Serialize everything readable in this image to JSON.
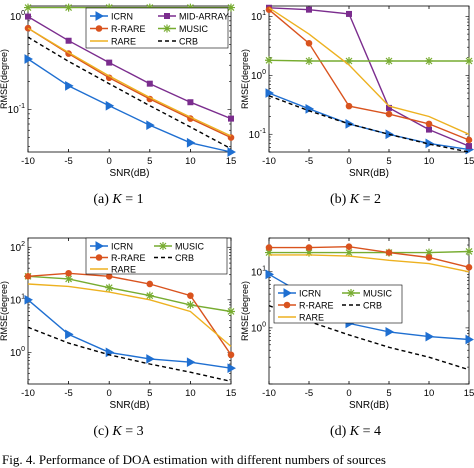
{
  "figure_caption": "Fig. 4. Performance of DOA estimation with different numbers of sources",
  "colors": {
    "ICRN": "#1f6fd1",
    "MID-ARRAY": "#7b2d8e",
    "R-RARE": "#d9531e",
    "MUSIC": "#77ac30",
    "RARE": "#edb120",
    "CRB": "#000000"
  },
  "chart_data": [
    {
      "type": "line",
      "caption_prefix": "(a)",
      "caption_var": "K",
      "caption_val": "= 1",
      "xlabel": "SNR(dB)",
      "ylabel": "RMSE(degree)",
      "x": [
        -10,
        -5,
        0,
        5,
        10,
        15
      ],
      "xticks": [
        "-10",
        "-5",
        "0",
        "5",
        "10",
        "15"
      ],
      "yscale": "log",
      "ylim": [
        0.035,
        1.3
      ],
      "yticks": [
        {
          "v": 0.1,
          "label": "10",
          "exp": "-1"
        },
        {
          "v": 1,
          "label": "10",
          "exp": "0"
        }
      ],
      "legend_position": "top",
      "legend_columns": 2,
      "series": [
        {
          "name": "ICRN",
          "marker": "tri",
          "dash": false,
          "values": [
            0.35,
            0.18,
            0.11,
            0.068,
            0.044,
            0.035
          ]
        },
        {
          "name": "MID-ARRAY",
          "marker": "sq",
          "dash": false,
          "values": [
            1.0,
            0.55,
            0.32,
            0.19,
            0.12,
            0.08
          ]
        },
        {
          "name": "R-RARE",
          "marker": "circ",
          "dash": false,
          "values": [
            0.75,
            0.4,
            0.22,
            0.13,
            0.08,
            0.05
          ]
        },
        {
          "name": "MUSIC",
          "marker": "star",
          "dash": false,
          "values": [
            1.25,
            1.25,
            1.25,
            1.25,
            1.25,
            1.25
          ]
        },
        {
          "name": "RARE",
          "marker": "none",
          "dash": false,
          "values": [
            0.75,
            0.41,
            0.23,
            0.135,
            0.083,
            0.052
          ]
        },
        {
          "name": "CRB",
          "marker": "none",
          "dash": true,
          "values": [
            0.6,
            0.33,
            0.19,
            0.11,
            0.065,
            0.038
          ]
        }
      ]
    },
    {
      "type": "line",
      "caption_prefix": "(b)",
      "caption_var": "K",
      "caption_val": "= 2",
      "xlabel": "SNR(dB)",
      "ylabel": "RMSE(degree)",
      "x": [
        -10,
        -5,
        0,
        5,
        10,
        15
      ],
      "xticks": [
        "-10",
        "-5",
        "0",
        "5",
        "10",
        "15"
      ],
      "yscale": "log",
      "ylim": [
        0.05,
        15
      ],
      "yticks": [
        {
          "v": 0.1,
          "label": "10",
          "exp": "-1"
        },
        {
          "v": 1,
          "label": "10",
          "exp": "0"
        },
        {
          "v": 10,
          "label": "10",
          "exp": "1"
        }
      ],
      "legend_position": "none",
      "legend_columns": 0,
      "series": [
        {
          "name": "ICRN",
          "marker": "tri",
          "dash": false,
          "values": [
            0.5,
            0.27,
            0.15,
            0.1,
            0.07,
            0.055
          ]
        },
        {
          "name": "MID-ARRAY",
          "marker": "sq",
          "dash": false,
          "values": [
            14,
            13,
            11,
            0.28,
            0.12,
            0.063
          ]
        },
        {
          "name": "R-RARE",
          "marker": "circ",
          "dash": false,
          "values": [
            13,
            3.5,
            0.3,
            0.22,
            0.15,
            0.08
          ]
        },
        {
          "name": "MUSIC",
          "marker": "star",
          "dash": false,
          "values": [
            1.8,
            1.75,
            1.75,
            1.75,
            1.75,
            1.75
          ]
        },
        {
          "name": "RARE",
          "marker": "none",
          "dash": false,
          "values": [
            14,
            5,
            1.5,
            0.3,
            0.2,
            0.1
          ]
        },
        {
          "name": "CRB",
          "marker": "none",
          "dash": true,
          "values": [
            0.45,
            0.25,
            0.15,
            0.1,
            0.068,
            0.05
          ]
        }
      ]
    },
    {
      "type": "line",
      "caption_prefix": "(c)",
      "caption_var": "K",
      "caption_val": "= 3",
      "xlabel": "SNR(dB)",
      "ylabel": "RMSE(degree)",
      "x": [
        -10,
        -5,
        0,
        5,
        10,
        15
      ],
      "xticks": [
        "-10",
        "-5",
        "0",
        "5",
        "10",
        "15"
      ],
      "yscale": "log",
      "ylim": [
        0.25,
        150
      ],
      "yticks": [
        {
          "v": 1,
          "label": "10",
          "exp": "0"
        },
        {
          "v": 10,
          "label": "10",
          "exp": "1"
        },
        {
          "v": 100,
          "label": "10",
          "exp": "2"
        }
      ],
      "legend_position": "top",
      "legend_columns": 2,
      "series": [
        {
          "name": "ICRN",
          "marker": "tri",
          "dash": false,
          "values": [
            10,
            2.2,
            1.0,
            0.75,
            0.65,
            0.5
          ]
        },
        {
          "name": "MUSIC",
          "marker": "star",
          "dash": false,
          "values": [
            28,
            25,
            17,
            12,
            8,
            6
          ]
        },
        {
          "name": "R-RARE",
          "marker": "circ",
          "dash": false,
          "values": [
            28,
            32,
            28,
            20,
            12,
            0.9
          ]
        },
        {
          "name": "CRB",
          "marker": "none",
          "dash": true,
          "values": [
            3.0,
            1.5,
            0.9,
            0.6,
            0.42,
            0.28
          ]
        },
        {
          "name": "RARE",
          "marker": "none",
          "dash": false,
          "values": [
            20,
            18,
            14,
            10,
            6,
            1.3
          ]
        }
      ]
    },
    {
      "type": "line",
      "caption_prefix": "(d)",
      "caption_var": "K",
      "caption_val": "= 4",
      "xlabel": "SNR(dB)",
      "ylabel": "RMSE(degree)",
      "x": [
        -10,
        -5,
        0,
        5,
        10,
        15
      ],
      "xticks": [
        "-10",
        "-5",
        "0",
        "5",
        "10",
        "15"
      ],
      "yscale": "log",
      "ylim": [
        0.1,
        40
      ],
      "yticks": [
        {
          "v": 1,
          "label": "10",
          "exp": "0"
        },
        {
          "v": 10,
          "label": "10",
          "exp": "1"
        }
      ],
      "legend_position": "middle-left",
      "legend_columns": 2,
      "series": [
        {
          "name": "ICRN",
          "marker": "tri",
          "dash": false,
          "values": [
            9,
            3.5,
            1.2,
            0.85,
            0.7,
            0.62
          ]
        },
        {
          "name": "MUSIC",
          "marker": "star",
          "dash": false,
          "values": [
            22,
            22,
            22,
            22,
            22,
            23
          ]
        },
        {
          "name": "R-RARE",
          "marker": "circ",
          "dash": false,
          "values": [
            27,
            27,
            28,
            22,
            18,
            12
          ]
        },
        {
          "name": "CRB",
          "marker": "none",
          "dash": true,
          "values": [
            2.5,
            1.3,
            0.75,
            0.45,
            0.3,
            0.18
          ]
        },
        {
          "name": "RARE",
          "marker": "none",
          "dash": false,
          "values": [
            20,
            20,
            19,
            16,
            14,
            10
          ]
        }
      ]
    }
  ]
}
